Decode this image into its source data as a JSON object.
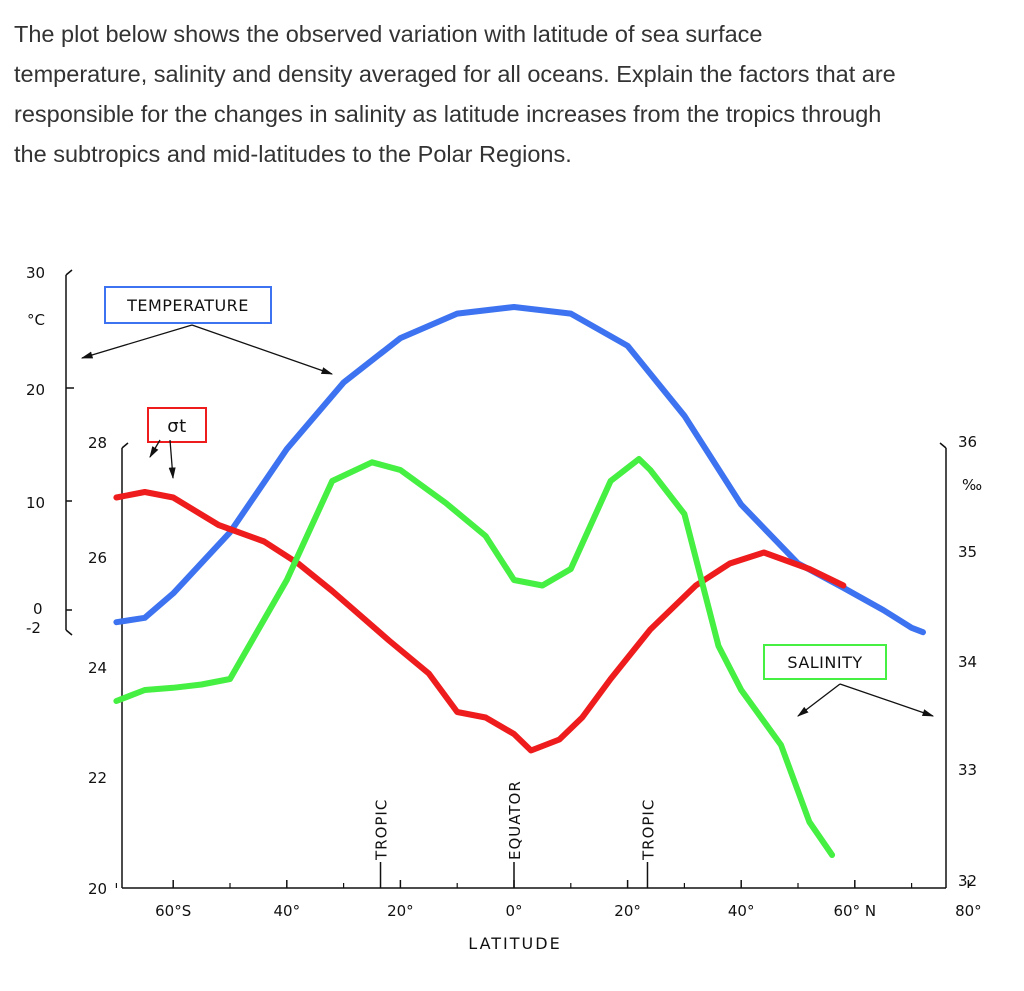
{
  "question": {
    "lines": [
      "The plot below shows the observed variation with latitude of sea surface",
      "temperature, salinity and density averaged for all oceans. Explain the factors that are",
      "responsible for the changes in salinity as latitude increases from the tropics through",
      "the subtropics and mid-latitudes to the Polar Regions."
    ]
  },
  "chart_data": {
    "type": "line",
    "xlabel": "LATITUDE",
    "x_tick_labels": [
      "60°S",
      "40°",
      "20°",
      "0°",
      "20°",
      "40°",
      "60° N",
      "80°"
    ],
    "x_tick_values": [
      -60,
      -40,
      -20,
      0,
      20,
      40,
      60,
      80
    ],
    "xlim": [
      -75,
      80
    ],
    "x_markers": [
      {
        "label": "TROPIC",
        "x": -23.5
      },
      {
        "label": "EQUATOR",
        "x": 0
      },
      {
        "label": "TROPIC",
        "x": 23.5
      }
    ],
    "axes": {
      "temperature": {
        "unit": "°C",
        "tick_labels": [
          "30",
          "20",
          "10",
          "0",
          "-2"
        ],
        "tick_values": [
          30,
          20,
          10,
          0,
          -2
        ],
        "range": [
          -2,
          30
        ]
      },
      "sigma_t": {
        "tick_labels": [
          "28",
          "26",
          "24",
          "22",
          "20"
        ],
        "tick_values": [
          28,
          26,
          24,
          22,
          20
        ],
        "range": [
          20,
          28
        ]
      },
      "salinity": {
        "unit": "‰",
        "tick_labels": [
          "36",
          "35",
          "34",
          "33",
          "32"
        ],
        "tick_values": [
          36,
          35,
          34,
          33,
          32
        ],
        "range": [
          32,
          36
        ]
      }
    },
    "series": [
      {
        "name": "TEMPERATURE",
        "axis": "temperature",
        "color": "#3d73f0",
        "points": [
          [
            -70,
            -1.1
          ],
          [
            -65,
            -0.7
          ],
          [
            -60,
            1.5
          ],
          [
            -50,
            7
          ],
          [
            -40,
            14.5
          ],
          [
            -30,
            20.5
          ],
          [
            -20,
            24.5
          ],
          [
            -10,
            26.7
          ],
          [
            0,
            27.3
          ],
          [
            10,
            26.7
          ],
          [
            20,
            23.8
          ],
          [
            30,
            17.5
          ],
          [
            40,
            9.5
          ],
          [
            50,
            4.2
          ],
          [
            58,
            2
          ],
          [
            65,
            0
          ],
          [
            70,
            -1.6
          ],
          [
            72,
            -2
          ]
        ]
      },
      {
        "name": "σt",
        "axis": "sigma_t",
        "color": "#ee1c1c",
        "points": [
          [
            -70,
            27.1
          ],
          [
            -65,
            27.2
          ],
          [
            -60,
            27.1
          ],
          [
            -52,
            26.6
          ],
          [
            -44,
            26.3
          ],
          [
            -38,
            25.9
          ],
          [
            -32,
            25.4
          ],
          [
            -22,
            24.5
          ],
          [
            -15,
            23.9
          ],
          [
            -10,
            23.2
          ],
          [
            -5,
            23.1
          ],
          [
            0,
            22.8
          ],
          [
            3,
            22.5
          ],
          [
            8,
            22.7
          ],
          [
            12,
            23.1
          ],
          [
            17,
            23.8
          ],
          [
            24,
            24.7
          ],
          [
            32,
            25.5
          ],
          [
            38,
            25.9
          ],
          [
            44,
            26.1
          ],
          [
            52,
            25.8
          ],
          [
            58,
            25.5
          ]
        ]
      },
      {
        "name": "SALINITY",
        "axis": "salinity",
        "color": "#45f042",
        "points": [
          [
            -70,
            33.7
          ],
          [
            -65,
            33.8
          ],
          [
            -60,
            33.82
          ],
          [
            -55,
            33.85
          ],
          [
            -50,
            33.9
          ],
          [
            -40,
            34.8
          ],
          [
            -32,
            35.7
          ],
          [
            -25,
            35.87
          ],
          [
            -20,
            35.8
          ],
          [
            -12,
            35.5
          ],
          [
            -5,
            35.2
          ],
          [
            0,
            34.8
          ],
          [
            5,
            34.75
          ],
          [
            10,
            34.9
          ],
          [
            17,
            35.7
          ],
          [
            22,
            35.9
          ],
          [
            24,
            35.8
          ],
          [
            30,
            35.4
          ],
          [
            36,
            34.2
          ],
          [
            40,
            33.8
          ],
          [
            47,
            33.3
          ],
          [
            52,
            32.6
          ],
          [
            56,
            32.3
          ]
        ]
      }
    ],
    "annotations": [
      {
        "label": "TEMPERATURE",
        "box_color": "#3d73f0"
      },
      {
        "label": "σt",
        "box_color": "#ee1c1c"
      },
      {
        "label": "SALINITY",
        "box_color": "#45f042"
      }
    ]
  }
}
